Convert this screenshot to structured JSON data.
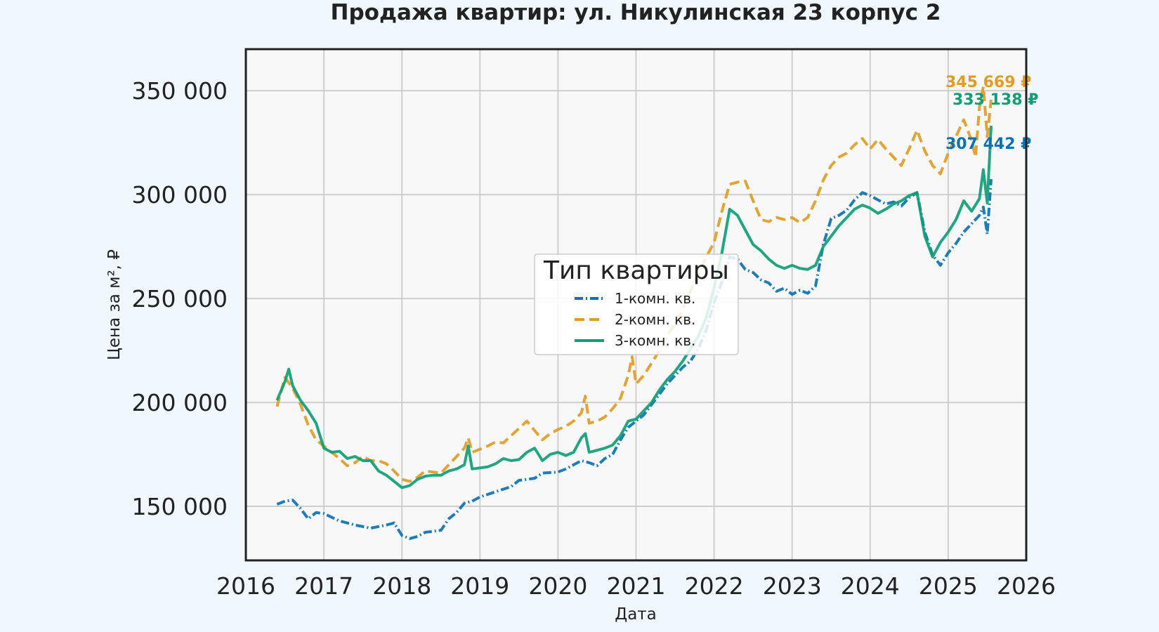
{
  "chart_data": {
    "type": "line",
    "title": "Продажа квартир: ул. Никулинская 23 корпус 2",
    "xlabel": "Дата",
    "ylabel": "Цена за м², ₽",
    "x_ticks": [
      "2016",
      "2017",
      "2018",
      "2019",
      "2020",
      "2021",
      "2022",
      "2023",
      "2024",
      "2025",
      "2026"
    ],
    "y_ticks": [
      {
        "value": 150000,
        "label": "150 000"
      },
      {
        "value": 200000,
        "label": "200 000"
      },
      {
        "value": 250000,
        "label": "250 000"
      },
      {
        "value": 300000,
        "label": "300 000"
      },
      {
        "value": 350000,
        "label": "350 000"
      }
    ],
    "xlim": [
      2016.0,
      2026.0
    ],
    "ylim": [
      124000,
      370000
    ],
    "grid": true,
    "legend": {
      "title": "Тип квартиры",
      "placement": "center"
    },
    "series": [
      {
        "name": "1-комн. кв.",
        "color": "#0a72b0",
        "dash": "dash-dot",
        "end_label": "307 442 ₽",
        "points": [
          [
            2016.4,
            151000
          ],
          [
            2016.5,
            152500
          ],
          [
            2016.6,
            153000
          ],
          [
            2016.7,
            149000
          ],
          [
            2016.8,
            144000
          ],
          [
            2016.9,
            147000
          ],
          [
            2017.0,
            146500
          ],
          [
            2017.2,
            143000
          ],
          [
            2017.4,
            141000
          ],
          [
            2017.6,
            139500
          ],
          [
            2017.8,
            141000
          ],
          [
            2017.9,
            142000
          ],
          [
            2018.0,
            136000
          ],
          [
            2018.1,
            134500
          ],
          [
            2018.2,
            135500
          ],
          [
            2018.3,
            137500
          ],
          [
            2018.4,
            138000
          ],
          [
            2018.5,
            138500
          ],
          [
            2018.6,
            144000
          ],
          [
            2018.7,
            147000
          ],
          [
            2018.8,
            151500
          ],
          [
            2018.9,
            152500
          ],
          [
            2019.0,
            154500
          ],
          [
            2019.2,
            157000
          ],
          [
            2019.4,
            159500
          ],
          [
            2019.5,
            162500
          ],
          [
            2019.7,
            163500
          ],
          [
            2019.8,
            166000
          ],
          [
            2020.0,
            166500
          ],
          [
            2020.1,
            168000
          ],
          [
            2020.2,
            170000
          ],
          [
            2020.3,
            172000
          ],
          [
            2020.4,
            171000
          ],
          [
            2020.5,
            169500
          ],
          [
            2020.6,
            173000
          ],
          [
            2020.7,
            175000
          ],
          [
            2020.8,
            182000
          ],
          [
            2020.9,
            188000
          ],
          [
            2021.0,
            191000
          ],
          [
            2021.1,
            194000
          ],
          [
            2021.2,
            199000
          ],
          [
            2021.3,
            204000
          ],
          [
            2021.4,
            209000
          ],
          [
            2021.5,
            213000
          ],
          [
            2021.6,
            217000
          ],
          [
            2021.7,
            220000
          ],
          [
            2021.8,
            226000
          ],
          [
            2021.9,
            235000
          ],
          [
            2022.0,
            248000
          ],
          [
            2022.1,
            258000
          ],
          [
            2022.2,
            270000
          ],
          [
            2022.3,
            269000
          ],
          [
            2022.4,
            264000
          ],
          [
            2022.5,
            262500
          ],
          [
            2022.6,
            259000
          ],
          [
            2022.7,
            257500
          ],
          [
            2022.8,
            253500
          ],
          [
            2022.9,
            255000
          ],
          [
            2023.0,
            252000
          ],
          [
            2023.1,
            254000
          ],
          [
            2023.2,
            252500
          ],
          [
            2023.3,
            256000
          ],
          [
            2023.4,
            276000
          ],
          [
            2023.5,
            288500
          ],
          [
            2023.6,
            290000
          ],
          [
            2023.7,
            292500
          ],
          [
            2023.8,
            297500
          ],
          [
            2023.9,
            301000
          ],
          [
            2024.0,
            299500
          ],
          [
            2024.1,
            297500
          ],
          [
            2024.2,
            295500
          ],
          [
            2024.3,
            296500
          ],
          [
            2024.4,
            294500
          ],
          [
            2024.5,
            298500
          ],
          [
            2024.6,
            301000
          ],
          [
            2024.7,
            282000
          ],
          [
            2024.8,
            271000
          ],
          [
            2024.9,
            266000
          ],
          [
            2025.0,
            272000
          ],
          [
            2025.1,
            276500
          ],
          [
            2025.2,
            282000
          ],
          [
            2025.3,
            286000
          ],
          [
            2025.4,
            290000
          ],
          [
            2025.45,
            294000
          ],
          [
            2025.5,
            281000
          ],
          [
            2025.55,
            307442
          ]
        ]
      },
      {
        "name": "2-комн. кв.",
        "color": "#e09c24",
        "dash": "dashed",
        "end_label": "345 669 ₽",
        "points": [
          [
            2016.4,
            198000
          ],
          [
            2016.5,
            212000
          ],
          [
            2016.6,
            207000
          ],
          [
            2016.7,
            199000
          ],
          [
            2016.8,
            189000
          ],
          [
            2016.9,
            182000
          ],
          [
            2017.0,
            179000
          ],
          [
            2017.1,
            176000
          ],
          [
            2017.2,
            173000
          ],
          [
            2017.3,
            169500
          ],
          [
            2017.4,
            171000
          ],
          [
            2017.5,
            174000
          ],
          [
            2017.6,
            172000
          ],
          [
            2017.7,
            172000
          ],
          [
            2017.8,
            170500
          ],
          [
            2017.9,
            167000
          ],
          [
            2018.0,
            163000
          ],
          [
            2018.1,
            162000
          ],
          [
            2018.2,
            164000
          ],
          [
            2018.3,
            167000
          ],
          [
            2018.4,
            166500
          ],
          [
            2018.5,
            166000
          ],
          [
            2018.6,
            170000
          ],
          [
            2018.7,
            174000
          ],
          [
            2018.8,
            178000
          ],
          [
            2018.85,
            183000
          ],
          [
            2018.9,
            176000
          ],
          [
            2019.0,
            177500
          ],
          [
            2019.1,
            179000
          ],
          [
            2019.2,
            181000
          ],
          [
            2019.3,
            180500
          ],
          [
            2019.4,
            184000
          ],
          [
            2019.5,
            187500
          ],
          [
            2019.6,
            191000
          ],
          [
            2019.7,
            186500
          ],
          [
            2019.8,
            182000
          ],
          [
            2019.9,
            185000
          ],
          [
            2020.0,
            187000
          ],
          [
            2020.1,
            188500
          ],
          [
            2020.2,
            191000
          ],
          [
            2020.3,
            195000
          ],
          [
            2020.35,
            203000
          ],
          [
            2020.4,
            190000
          ],
          [
            2020.5,
            191000
          ],
          [
            2020.6,
            193000
          ],
          [
            2020.7,
            197000
          ],
          [
            2020.8,
            202000
          ],
          [
            2020.9,
            213000
          ],
          [
            2020.95,
            222000
          ],
          [
            2021.0,
            209000
          ],
          [
            2021.1,
            213000
          ],
          [
            2021.2,
            219000
          ],
          [
            2021.3,
            225000
          ],
          [
            2021.4,
            232000
          ],
          [
            2021.5,
            238000
          ],
          [
            2021.6,
            245000
          ],
          [
            2021.7,
            254000
          ],
          [
            2021.8,
            262000
          ],
          [
            2021.9,
            270000
          ],
          [
            2022.0,
            277000
          ],
          [
            2022.1,
            292000
          ],
          [
            2022.2,
            305000
          ],
          [
            2022.3,
            306000
          ],
          [
            2022.4,
            306500
          ],
          [
            2022.5,
            297000
          ],
          [
            2022.6,
            288000
          ],
          [
            2022.7,
            287000
          ],
          [
            2022.8,
            289000
          ],
          [
            2022.9,
            288000
          ],
          [
            2023.0,
            289000
          ],
          [
            2023.1,
            286500
          ],
          [
            2023.2,
            289000
          ],
          [
            2023.3,
            297000
          ],
          [
            2023.4,
            307000
          ],
          [
            2023.5,
            314000
          ],
          [
            2023.6,
            318000
          ],
          [
            2023.7,
            320000
          ],
          [
            2023.8,
            324000
          ],
          [
            2023.9,
            327000
          ],
          [
            2024.0,
            322000
          ],
          [
            2024.1,
            326500
          ],
          [
            2024.2,
            322000
          ],
          [
            2024.3,
            318000
          ],
          [
            2024.4,
            314000
          ],
          [
            2024.5,
            322000
          ],
          [
            2024.6,
            331000
          ],
          [
            2024.7,
            321000
          ],
          [
            2024.8,
            314000
          ],
          [
            2024.9,
            310000
          ],
          [
            2025.0,
            320000
          ],
          [
            2025.1,
            328000
          ],
          [
            2025.2,
            336000
          ],
          [
            2025.3,
            326000
          ],
          [
            2025.35,
            318000
          ],
          [
            2025.4,
            342000
          ],
          [
            2025.45,
            352000
          ],
          [
            2025.5,
            328000
          ],
          [
            2025.55,
            345669
          ]
        ]
      },
      {
        "name": "3-комн. кв.",
        "color": "#0f9e76",
        "dash": "solid",
        "end_label": "333 138 ₽",
        "points": [
          [
            2016.4,
            201000
          ],
          [
            2016.5,
            210000
          ],
          [
            2016.55,
            216000
          ],
          [
            2016.6,
            208000
          ],
          [
            2016.7,
            201000
          ],
          [
            2016.8,
            196000
          ],
          [
            2016.9,
            190000
          ],
          [
            2017.0,
            178000
          ],
          [
            2017.1,
            176000
          ],
          [
            2017.2,
            176500
          ],
          [
            2017.3,
            173000
          ],
          [
            2017.4,
            174000
          ],
          [
            2017.5,
            172000
          ],
          [
            2017.6,
            172000
          ],
          [
            2017.7,
            167000
          ],
          [
            2017.8,
            165000
          ],
          [
            2017.9,
            162000
          ],
          [
            2018.0,
            159000
          ],
          [
            2018.1,
            160000
          ],
          [
            2018.2,
            163000
          ],
          [
            2018.3,
            164500
          ],
          [
            2018.4,
            165000
          ],
          [
            2018.5,
            165000
          ],
          [
            2018.6,
            167000
          ],
          [
            2018.7,
            168000
          ],
          [
            2018.8,
            170000
          ],
          [
            2018.85,
            179000
          ],
          [
            2018.9,
            168000
          ],
          [
            2019.0,
            168500
          ],
          [
            2019.1,
            169000
          ],
          [
            2019.2,
            170500
          ],
          [
            2019.3,
            173000
          ],
          [
            2019.4,
            172000
          ],
          [
            2019.5,
            172500
          ],
          [
            2019.6,
            176000
          ],
          [
            2019.7,
            178000
          ],
          [
            2019.8,
            172000
          ],
          [
            2019.9,
            175000
          ],
          [
            2020.0,
            176000
          ],
          [
            2020.1,
            174500
          ],
          [
            2020.2,
            176000
          ],
          [
            2020.3,
            183000
          ],
          [
            2020.35,
            185000
          ],
          [
            2020.4,
            176000
          ],
          [
            2020.5,
            177000
          ],
          [
            2020.6,
            178000
          ],
          [
            2020.7,
            179500
          ],
          [
            2020.8,
            184000
          ],
          [
            2020.9,
            191000
          ],
          [
            2021.0,
            192000
          ],
          [
            2021.1,
            196000
          ],
          [
            2021.2,
            200000
          ],
          [
            2021.3,
            206000
          ],
          [
            2021.4,
            211000
          ],
          [
            2021.5,
            215000
          ],
          [
            2021.6,
            220000
          ],
          [
            2021.7,
            226000
          ],
          [
            2021.8,
            232000
          ],
          [
            2021.9,
            241000
          ],
          [
            2022.0,
            255000
          ],
          [
            2022.1,
            272000
          ],
          [
            2022.2,
            293000
          ],
          [
            2022.3,
            290000
          ],
          [
            2022.4,
            283000
          ],
          [
            2022.5,
            276000
          ],
          [
            2022.6,
            273000
          ],
          [
            2022.7,
            269000
          ],
          [
            2022.8,
            266000
          ],
          [
            2022.9,
            264500
          ],
          [
            2023.0,
            266000
          ],
          [
            2023.1,
            264500
          ],
          [
            2023.2,
            264000
          ],
          [
            2023.3,
            266000
          ],
          [
            2023.4,
            275000
          ],
          [
            2023.5,
            280000
          ],
          [
            2023.6,
            285000
          ],
          [
            2023.7,
            289000
          ],
          [
            2023.8,
            293000
          ],
          [
            2023.9,
            295000
          ],
          [
            2024.0,
            293500
          ],
          [
            2024.1,
            291000
          ],
          [
            2024.2,
            293000
          ],
          [
            2024.3,
            295500
          ],
          [
            2024.4,
            297000
          ],
          [
            2024.5,
            299500
          ],
          [
            2024.6,
            301000
          ],
          [
            2024.7,
            280000
          ],
          [
            2024.8,
            270000
          ],
          [
            2024.9,
            277000
          ],
          [
            2025.0,
            282000
          ],
          [
            2025.1,
            288000
          ],
          [
            2025.2,
            297000
          ],
          [
            2025.3,
            292000
          ],
          [
            2025.4,
            298000
          ],
          [
            2025.45,
            312000
          ],
          [
            2025.5,
            296000
          ],
          [
            2025.55,
            333138
          ]
        ]
      }
    ]
  }
}
